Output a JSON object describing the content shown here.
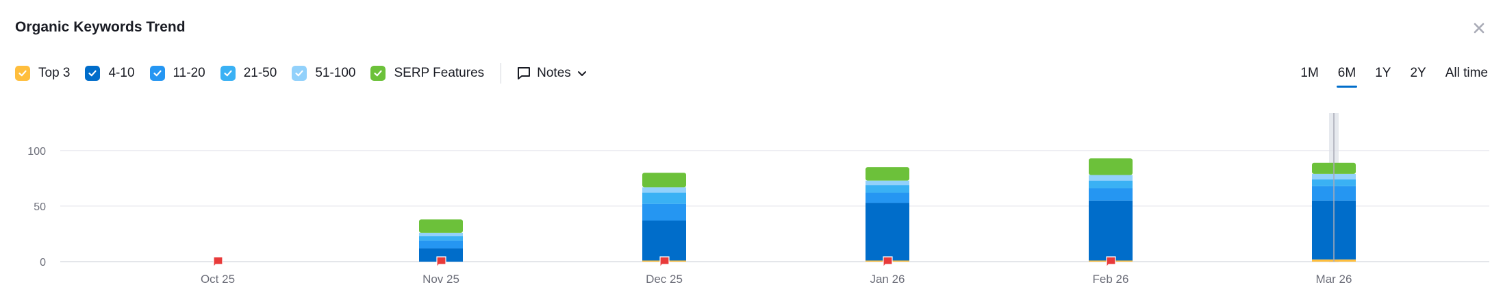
{
  "title": "Organic Keywords Trend",
  "close_icon": "close-icon",
  "legend": [
    {
      "key": "top3",
      "label": "Top 3",
      "color": "#ffbe3d"
    },
    {
      "key": "r4_10",
      "label": "4-10",
      "color": "#006dca"
    },
    {
      "key": "r11_20",
      "label": "11-20",
      "color": "#2596f2"
    },
    {
      "key": "r21_50",
      "label": "21-50",
      "color": "#3ab1f4"
    },
    {
      "key": "r51_100",
      "label": "51-100",
      "color": "#92d1fb"
    },
    {
      "key": "serp",
      "label": "SERP Features",
      "color": "#6cc13a"
    }
  ],
  "notes_label": "Notes",
  "ranges": [
    {
      "label": "1M",
      "active": false
    },
    {
      "label": "6M",
      "active": true
    },
    {
      "label": "1Y",
      "active": false
    },
    {
      "label": "2Y",
      "active": false
    },
    {
      "label": "All time",
      "active": false
    }
  ],
  "chart_data": {
    "type": "bar",
    "stacked": true,
    "categories": [
      "Oct 25",
      "Nov 25",
      "Dec 25",
      "Jan 26",
      "Feb 26",
      "Mar 26"
    ],
    "ylim": [
      0,
      140
    ],
    "yticks": [
      0,
      50,
      100
    ],
    "grid": true,
    "series": [
      {
        "name": "Top 3",
        "color": "#ffbe3d",
        "values": [
          0,
          0,
          1,
          1,
          1,
          2
        ]
      },
      {
        "name": "4-10",
        "color": "#006dca",
        "values": [
          0,
          12,
          36,
          52,
          54,
          53
        ]
      },
      {
        "name": "11-20",
        "color": "#2596f2",
        "values": [
          0,
          7,
          15,
          9,
          11,
          13
        ]
      },
      {
        "name": "21-50",
        "color": "#3ab1f4",
        "values": [
          0,
          4,
          10,
          7,
          7,
          6
        ]
      },
      {
        "name": "51-100",
        "color": "#92d1fb",
        "values": [
          0,
          3,
          5,
          4,
          5,
          5
        ]
      },
      {
        "name": "SERP Features",
        "color": "#6cc13a",
        "values": [
          0,
          12,
          13,
          12,
          15,
          10
        ]
      }
    ],
    "note_markers": [
      "Oct 25",
      "Nov 25",
      "Dec 25",
      "Jan 26",
      "Feb 26"
    ],
    "hover_category": "Mar 26"
  }
}
